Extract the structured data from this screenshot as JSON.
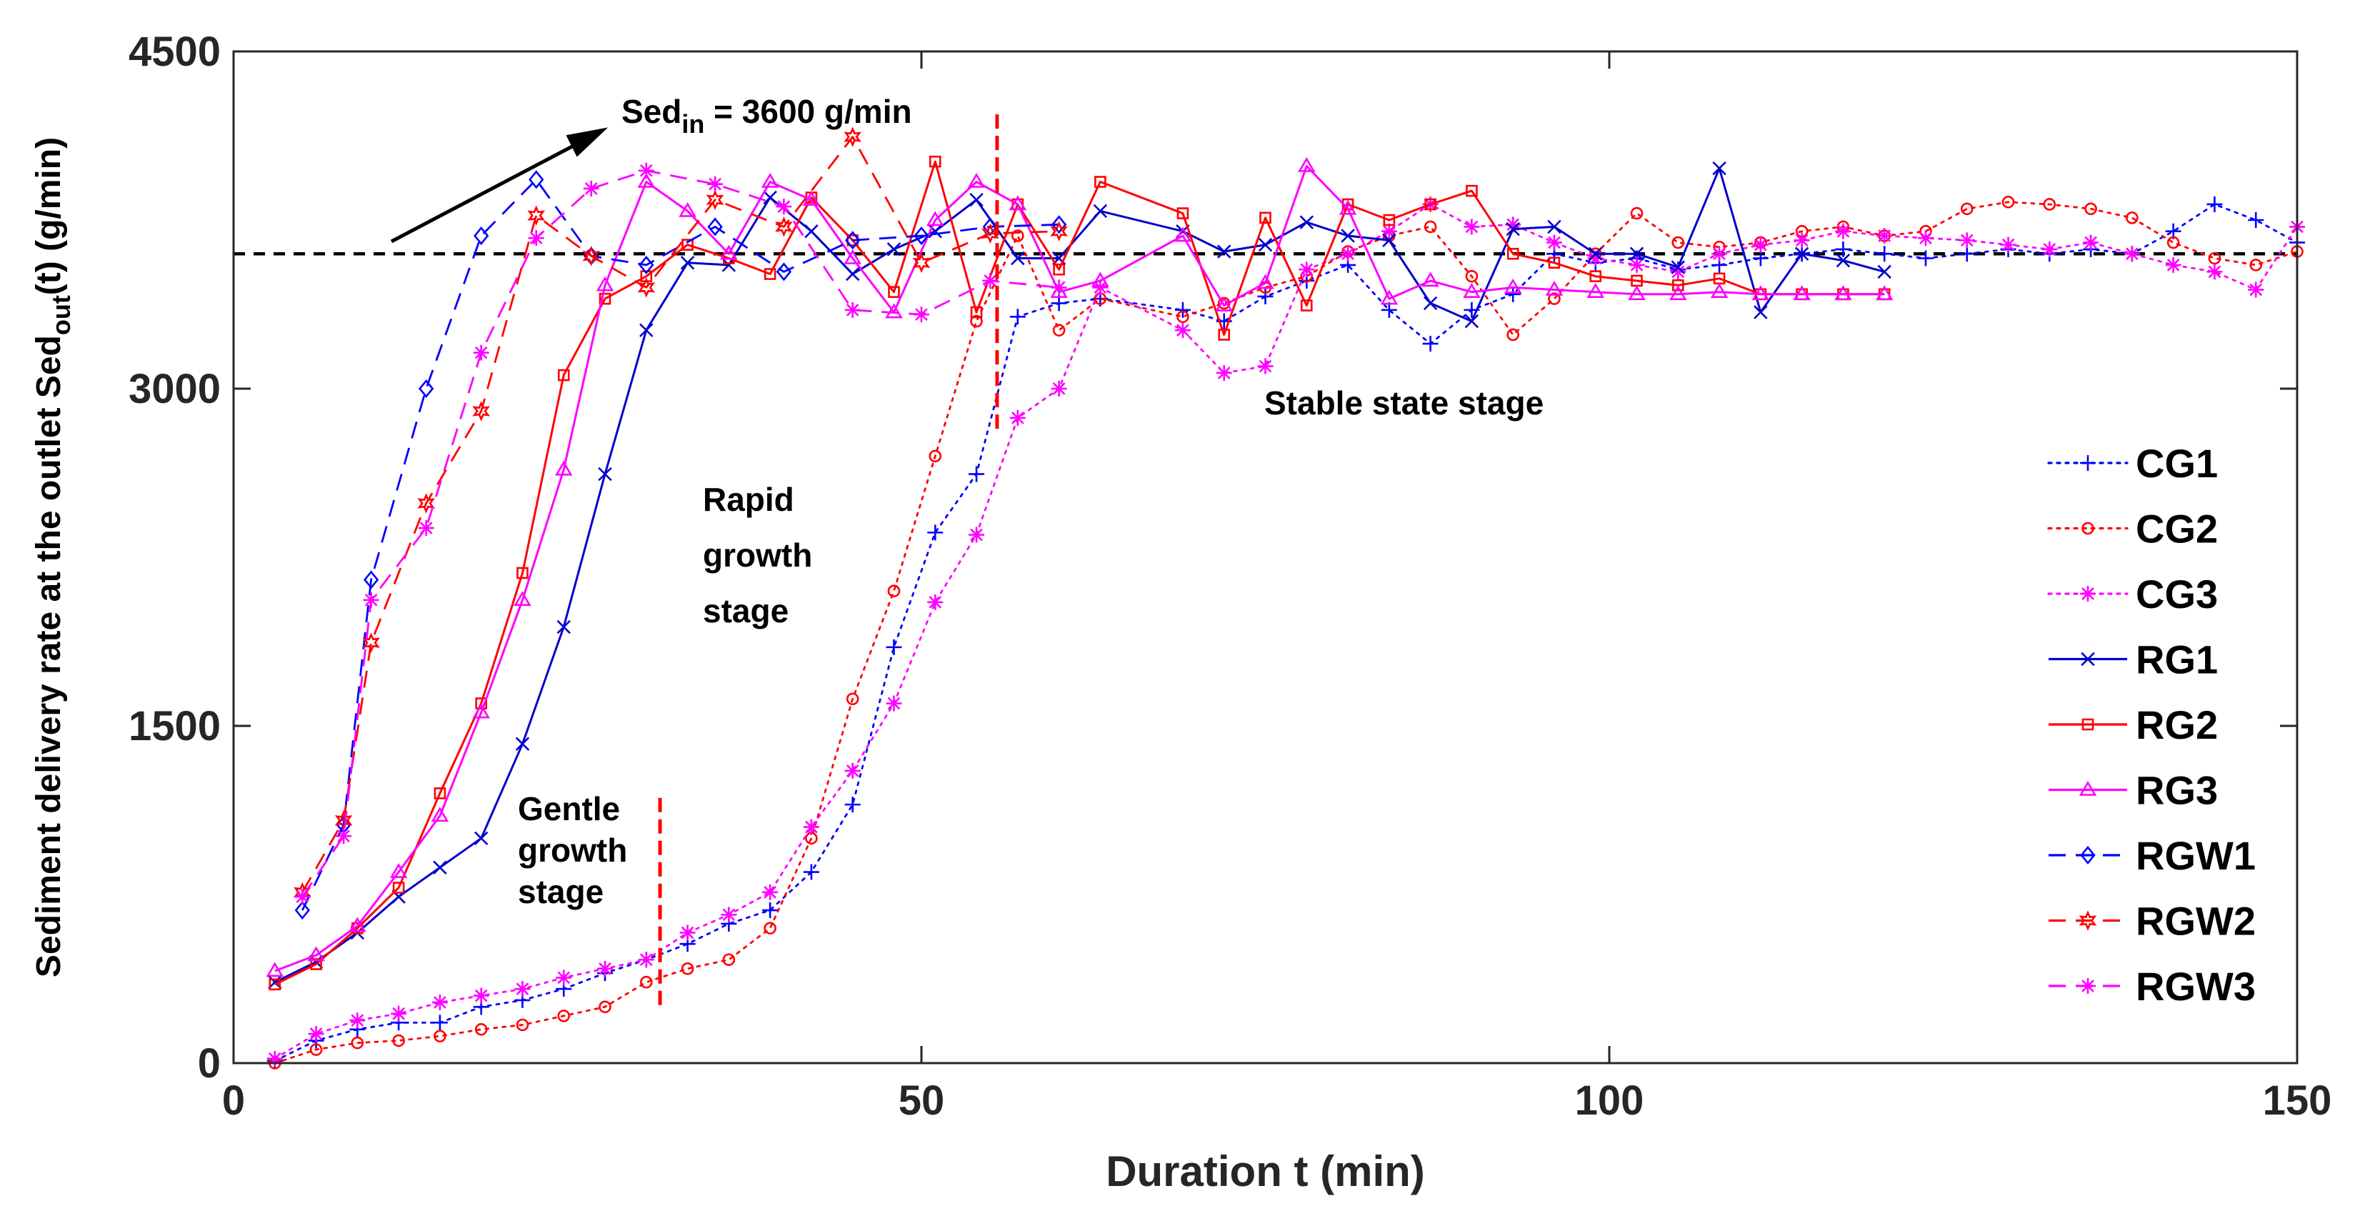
{
  "chart_data": {
    "type": "line",
    "xlabel": "Duration t (min)",
    "ylabel": {
      "text": "Sediment delivery rate at the outlet  Sed",
      "sub": "out",
      "tail": "(t) (g/min)"
    },
    "xlim": [
      0,
      150
    ],
    "ylim": [
      0,
      4500
    ],
    "xticks": [
      0,
      50,
      100,
      150
    ],
    "yticks": [
      0,
      1500,
      3000,
      4500
    ],
    "grid": false,
    "legend": "right",
    "reference_line": {
      "y": 3600,
      "style": "dashed",
      "color": "#000000"
    },
    "inflow_label": {
      "prefix": "Sed",
      "sub": "in",
      "text": " = 3600 g/min"
    },
    "stage_labels": [
      {
        "lines": [
          "Gentle",
          "growth",
          "stage"
        ]
      },
      {
        "lines": [
          "Rapid",
          "growth",
          "stage"
        ]
      },
      {
        "lines": [
          "Stable state stage"
        ]
      }
    ],
    "stage_dividers": [
      {
        "x": 31,
        "y_from": 240,
        "y_to": 1180
      },
      {
        "x": 55.5,
        "y_from": 2820,
        "y_to": 4220
      }
    ],
    "series": [
      {
        "name": "CG1",
        "color": "#0000ff",
        "dash": "dotted",
        "marker": "plus",
        "x": [
          3,
          6,
          9,
          12,
          15,
          18,
          21,
          24,
          27,
          30,
          33,
          36,
          39,
          42,
          45,
          48,
          51,
          54,
          57,
          60,
          63,
          69,
          72,
          75,
          78,
          81,
          84,
          87,
          90,
          93,
          96,
          99,
          102,
          105,
          108,
          111,
          114,
          117,
          120,
          123,
          126,
          129,
          132,
          135,
          138,
          141,
          144,
          147,
          150
        ],
        "y": [
          10,
          100,
          150,
          180,
          180,
          250,
          280,
          330,
          400,
          460,
          530,
          620,
          680,
          850,
          1150,
          1850,
          2360,
          2620,
          3320,
          3380,
          3400,
          3350,
          3300,
          3410,
          3480,
          3550,
          3350,
          3200,
          3350,
          3420,
          3600,
          3560,
          3580,
          3530,
          3550,
          3580,
          3600,
          3620,
          3600,
          3580,
          3600,
          3620,
          3600,
          3620,
          3600,
          3700,
          3820,
          3750,
          3650
        ]
      },
      {
        "name": "CG2",
        "color": "#ff0000",
        "dash": "dotted",
        "marker": "circle",
        "x": [
          3,
          6,
          9,
          12,
          15,
          18,
          21,
          24,
          27,
          30,
          33,
          36,
          39,
          42,
          45,
          48,
          51,
          54,
          57,
          60,
          63,
          69,
          72,
          75,
          78,
          81,
          84,
          87,
          90,
          93,
          96,
          99,
          102,
          105,
          108,
          111,
          114,
          117,
          120,
          123,
          126,
          129,
          132,
          135,
          138,
          141,
          144,
          147,
          150
        ],
        "y": [
          0,
          60,
          90,
          100,
          120,
          150,
          170,
          210,
          250,
          360,
          420,
          460,
          600,
          1000,
          1620,
          2100,
          2700,
          3300,
          3680,
          3260,
          3400,
          3320,
          3380,
          3450,
          3500,
          3610,
          3680,
          3720,
          3500,
          3240,
          3400,
          3600,
          3780,
          3650,
          3630,
          3650,
          3700,
          3720,
          3680,
          3700,
          3800,
          3830,
          3820,
          3800,
          3760,
          3650,
          3580,
          3550,
          3610
        ]
      },
      {
        "name": "CG3",
        "color": "#ff00ff",
        "dash": "dotted",
        "marker": "asterisk",
        "x": [
          3,
          6,
          9,
          12,
          15,
          18,
          21,
          24,
          27,
          30,
          33,
          36,
          39,
          42,
          45,
          48,
          51,
          54,
          57,
          60,
          63,
          69,
          72,
          75,
          78,
          81,
          84,
          87,
          90,
          93,
          96,
          99,
          102,
          105,
          108,
          111,
          114,
          117,
          120,
          123,
          126,
          129,
          132,
          135,
          138,
          141,
          144,
          147,
          150
        ],
        "y": [
          20,
          130,
          190,
          220,
          270,
          300,
          330,
          380,
          420,
          460,
          580,
          660,
          760,
          1050,
          1300,
          1600,
          2050,
          2350,
          2870,
          3000,
          3450,
          3260,
          3070,
          3100,
          3530,
          3600,
          3700,
          3820,
          3720,
          3730,
          3650,
          3580,
          3550,
          3520,
          3600,
          3640,
          3660,
          3700,
          3680,
          3670,
          3660,
          3640,
          3620,
          3650,
          3600,
          3550,
          3520,
          3440,
          3720
        ]
      },
      {
        "name": "RG1",
        "color": "#0000cc",
        "dash": "solid",
        "marker": "cross",
        "x": [
          3,
          6,
          9,
          12,
          15,
          18,
          21,
          24,
          27,
          30,
          33,
          36,
          39,
          42,
          45,
          48,
          51,
          54,
          57,
          60,
          63,
          69,
          72,
          75,
          78,
          81,
          84,
          87,
          90,
          93,
          96,
          99,
          102,
          105,
          108,
          111,
          114,
          117,
          120
        ],
        "y": [
          360,
          450,
          580,
          740,
          870,
          1000,
          1420,
          1940,
          2620,
          3260,
          3560,
          3550,
          3850,
          3700,
          3510,
          3620,
          3700,
          3840,
          3580,
          3580,
          3790,
          3700,
          3610,
          3640,
          3740,
          3680,
          3660,
          3380,
          3300,
          3710,
          3720,
          3600,
          3600,
          3540,
          3980,
          3340,
          3600,
          3570,
          3520
        ]
      },
      {
        "name": "RG2",
        "color": "#ff0000",
        "dash": "solid",
        "marker": "square",
        "x": [
          3,
          6,
          9,
          12,
          15,
          18,
          21,
          24,
          27,
          30,
          33,
          36,
          39,
          42,
          45,
          48,
          51,
          54,
          57,
          60,
          63,
          69,
          72,
          75,
          78,
          81,
          84,
          87,
          90,
          93,
          96,
          99,
          102,
          105,
          108,
          111,
          114,
          117,
          120
        ],
        "y": [
          350,
          440,
          600,
          780,
          1200,
          1600,
          2180,
          3060,
          3400,
          3500,
          3640,
          3580,
          3510,
          3850,
          3660,
          3430,
          4010,
          3340,
          3820,
          3530,
          3920,
          3780,
          3240,
          3760,
          3370,
          3820,
          3750,
          3820,
          3880,
          3600,
          3560,
          3500,
          3480,
          3460,
          3490,
          3420,
          3420,
          3420,
          3420
        ]
      },
      {
        "name": "RG3",
        "color": "#ff00ff",
        "dash": "solid",
        "marker": "triangle",
        "x": [
          3,
          6,
          9,
          12,
          15,
          18,
          21,
          24,
          27,
          30,
          33,
          36,
          39,
          42,
          45,
          48,
          51,
          54,
          57,
          60,
          63,
          69,
          72,
          75,
          78,
          81,
          84,
          87,
          90,
          93,
          96,
          99,
          102,
          105,
          108,
          111,
          114,
          117,
          120
        ],
        "y": [
          410,
          480,
          610,
          850,
          1100,
          1560,
          2060,
          2640,
          3460,
          3920,
          3790,
          3600,
          3920,
          3840,
          3580,
          3340,
          3750,
          3920,
          3820,
          3430,
          3480,
          3680,
          3370,
          3470,
          3990,
          3800,
          3400,
          3480,
          3430,
          3450,
          3440,
          3430,
          3420,
          3420,
          3430,
          3420,
          3420,
          3420,
          3420
        ]
      },
      {
        "name": "RGW1",
        "color": "#0000ff",
        "dash": "dashed",
        "marker": "diamond",
        "x": [
          5,
          8,
          10,
          14,
          18,
          22,
          26,
          30,
          35,
          40,
          45,
          50,
          55,
          60
        ],
        "y": [
          680,
          1060,
          2150,
          3000,
          3680,
          3930,
          3590,
          3550,
          3720,
          3520,
          3660,
          3680,
          3720,
          3730
        ]
      },
      {
        "name": "RGW2",
        "color": "#ff0000",
        "dash": "dashed",
        "marker": "hexagram",
        "x": [
          5,
          8,
          10,
          14,
          18,
          22,
          26,
          30,
          35,
          40,
          45,
          50,
          55,
          60
        ],
        "y": [
          760,
          1080,
          1870,
          2490,
          2900,
          3770,
          3590,
          3450,
          3840,
          3720,
          4120,
          3560,
          3690,
          3700
        ]
      },
      {
        "name": "RGW3",
        "color": "#ff00ff",
        "dash": "dashed",
        "marker": "asterisk",
        "x": [
          5,
          8,
          10,
          14,
          18,
          22,
          26,
          30,
          35,
          40,
          45,
          50,
          55,
          60
        ],
        "y": [
          740,
          1010,
          2060,
          2380,
          3160,
          3670,
          3890,
          3970,
          3910,
          3810,
          3350,
          3330,
          3480,
          3450
        ]
      }
    ]
  }
}
